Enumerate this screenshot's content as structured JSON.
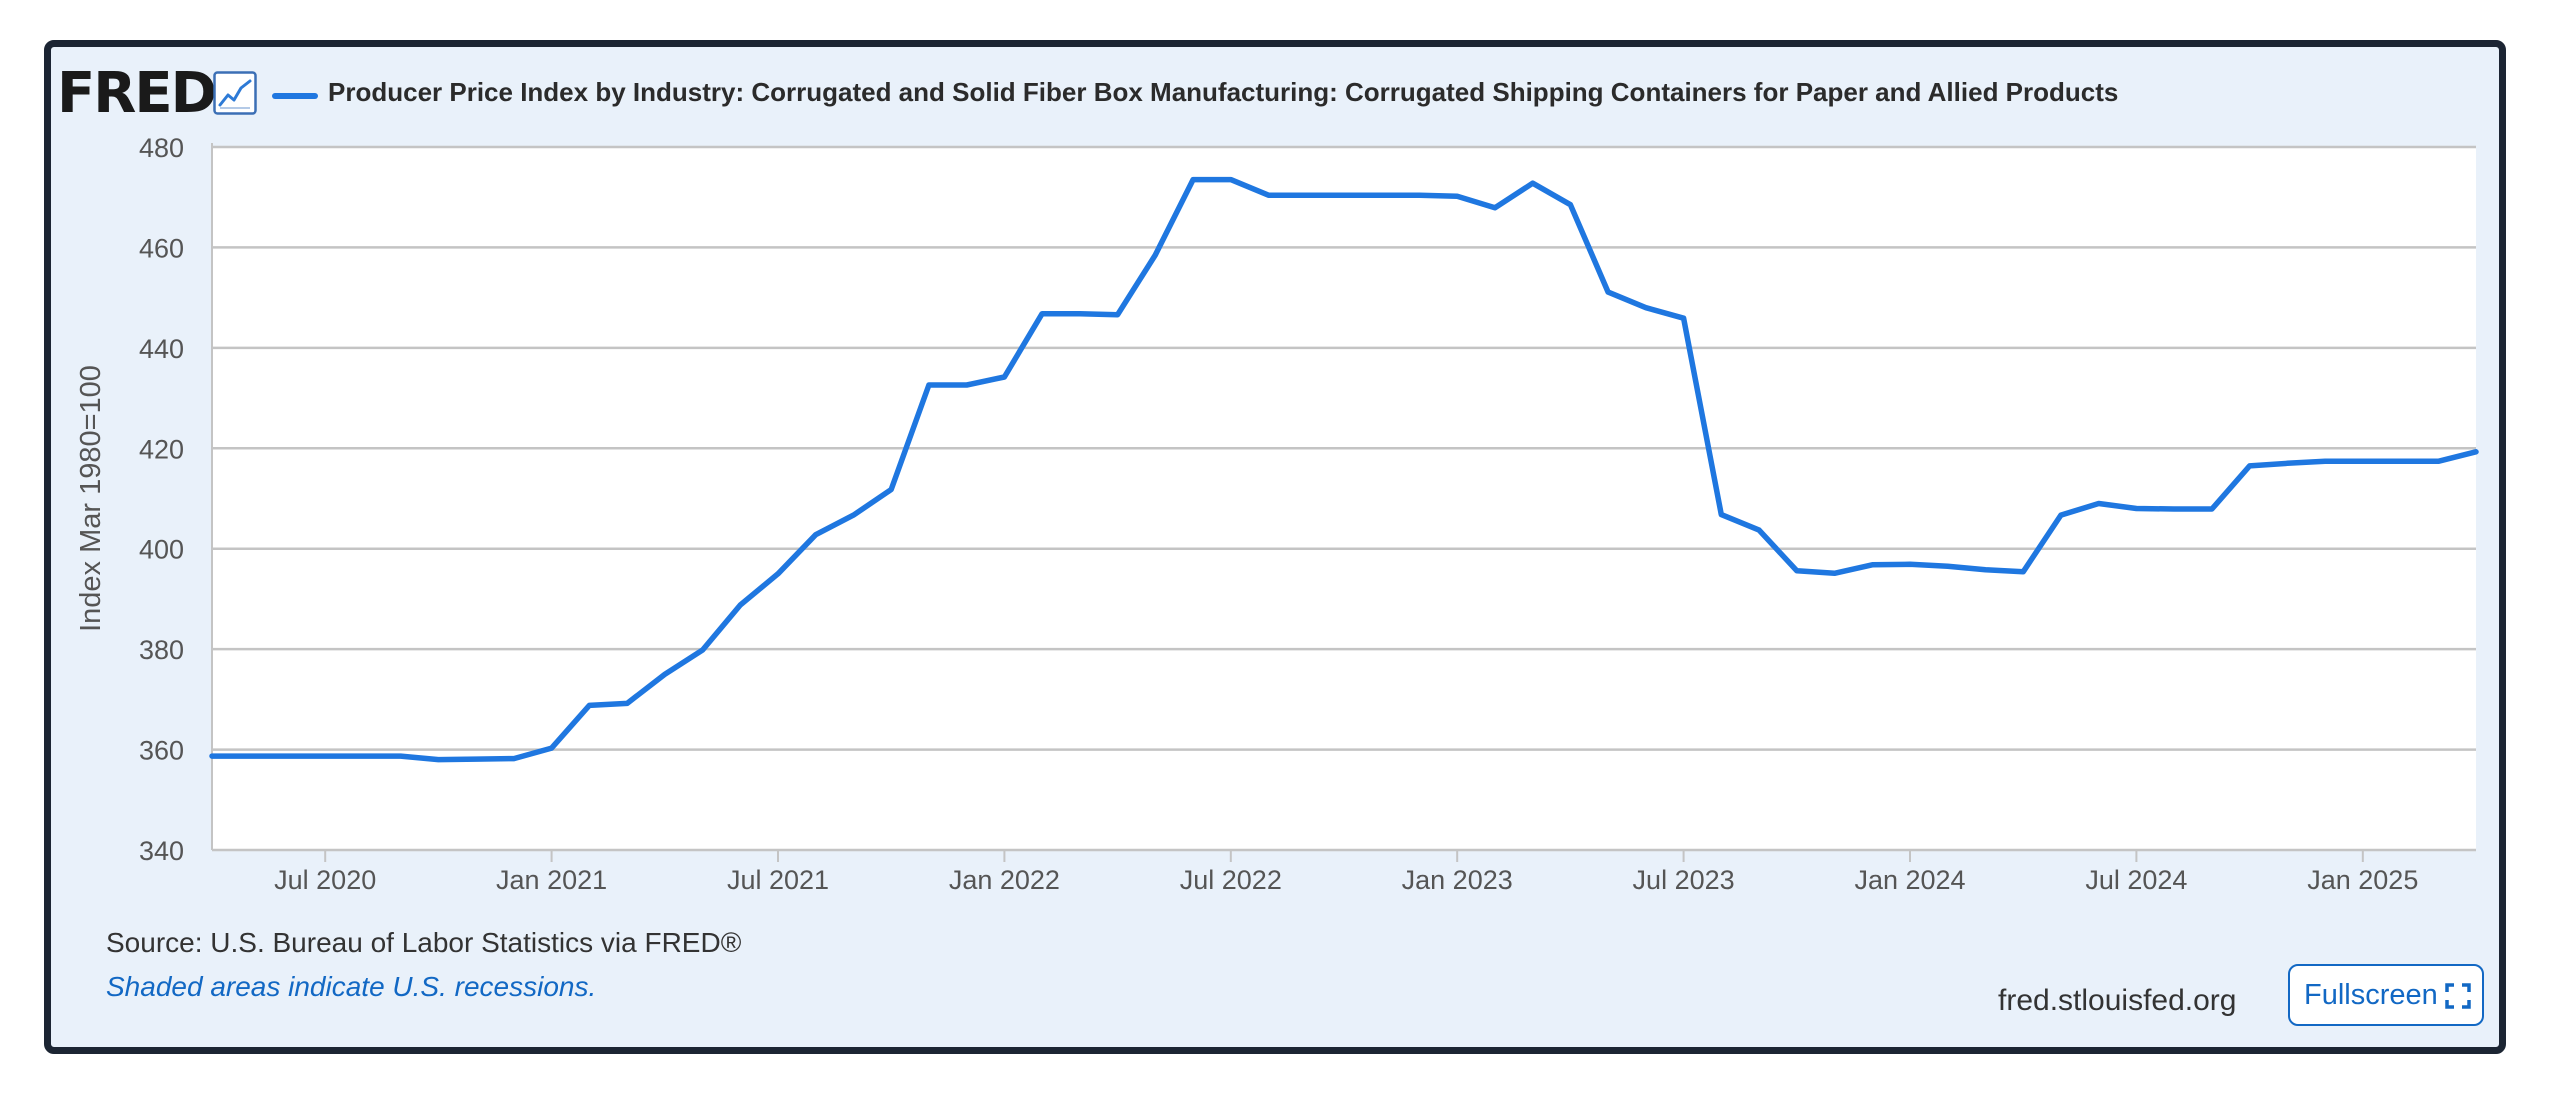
{
  "brand": {
    "logo_text": "FRED",
    "icon": "chart-line-icon",
    "accent": "#1f77e0"
  },
  "footer": {
    "source": "Source: U.S. Bureau of Labor Statistics via FRED®",
    "recessions_note": "Shaded areas indicate U.S. recessions.",
    "site": "fred.stlouisfed.org",
    "fullscreen_label": "Fullscreen",
    "fullscreen_icon": "expand-icon"
  },
  "chart_data": {
    "type": "line",
    "title": "Producer Price Index by Industry: Corrugated and Solid Fiber Box Manufacturing: Corrugated Shipping Containers for Paper and Allied Products",
    "ylabel": "Index Mar 1980=100",
    "xlabel": "",
    "ylim": [
      340,
      480
    ],
    "yticks": [
      340,
      360,
      380,
      400,
      420,
      440,
      460,
      480
    ],
    "xlim": [
      "2020-04",
      "2025-04"
    ],
    "xticks": [
      {
        "label": "Jul 2020",
        "date": "2020-07"
      },
      {
        "label": "Jan 2021",
        "date": "2021-01"
      },
      {
        "label": "Jul 2021",
        "date": "2021-07"
      },
      {
        "label": "Jan 2022",
        "date": "2022-01"
      },
      {
        "label": "Jul 2022",
        "date": "2022-07"
      },
      {
        "label": "Jan 2023",
        "date": "2023-01"
      },
      {
        "label": "Jul 2023",
        "date": "2023-07"
      },
      {
        "label": "Jan 2024",
        "date": "2024-01"
      },
      {
        "label": "Jul 2024",
        "date": "2024-07"
      },
      {
        "label": "Jan 2025",
        "date": "2025-01"
      }
    ],
    "grid": true,
    "legend": "top-left",
    "series": [
      {
        "color": "#1f77e0",
        "x": [
          "2020-04",
          "2020-05",
          "2020-06",
          "2020-07",
          "2020-08",
          "2020-09",
          "2020-10",
          "2020-11",
          "2020-12",
          "2021-01",
          "2021-02",
          "2021-03",
          "2021-04",
          "2021-05",
          "2021-06",
          "2021-07",
          "2021-08",
          "2021-09",
          "2021-10",
          "2021-11",
          "2021-12",
          "2022-01",
          "2022-02",
          "2022-03",
          "2022-04",
          "2022-05",
          "2022-06",
          "2022-07",
          "2022-08",
          "2022-09",
          "2022-10",
          "2022-11",
          "2022-12",
          "2023-01",
          "2023-02",
          "2023-03",
          "2023-04",
          "2023-05",
          "2023-06",
          "2023-07",
          "2023-08",
          "2023-09",
          "2023-10",
          "2023-11",
          "2023-12",
          "2024-01",
          "2024-02",
          "2024-03",
          "2024-04",
          "2024-05",
          "2024-06",
          "2024-07",
          "2024-08",
          "2024-09",
          "2024-10",
          "2024-11",
          "2024-12",
          "2025-01",
          "2025-02",
          "2025-03",
          "2025-04"
        ],
        "values": [
          358.7,
          358.7,
          358.7,
          358.7,
          358.7,
          358.7,
          358.0,
          358.1,
          358.2,
          360.3,
          368.8,
          369.2,
          375.0,
          379.8,
          388.8,
          395.0,
          402.8,
          406.7,
          411.8,
          432.6,
          432.6,
          434.2,
          446.8,
          446.8,
          446.6,
          458.5,
          473.5,
          473.5,
          470.4,
          470.4,
          470.4,
          470.4,
          470.4,
          470.2,
          467.9,
          472.8,
          468.5,
          451.1,
          448.0,
          445.9,
          406.8,
          403.7,
          395.6,
          395.1,
          396.8,
          396.9,
          396.5,
          395.8,
          395.4,
          406.7,
          409.0,
          408.0,
          407.9,
          407.9,
          416.5,
          417.0,
          417.4,
          417.4,
          417.4,
          417.4,
          419.3
        ]
      }
    ]
  }
}
